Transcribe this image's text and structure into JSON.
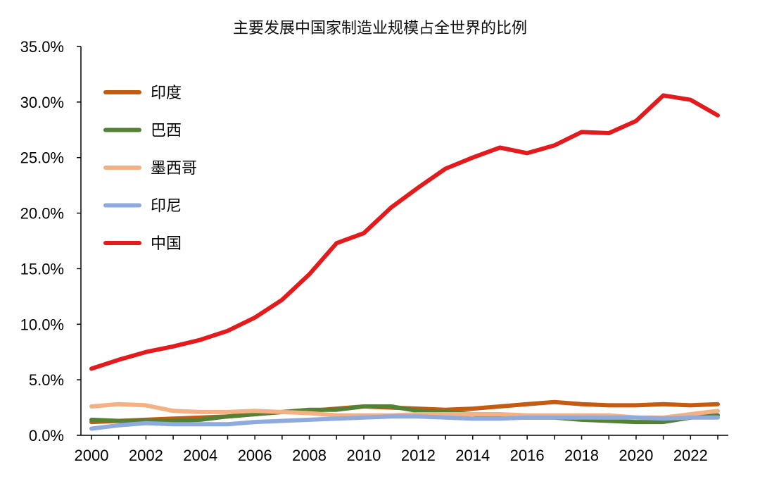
{
  "chart_data": {
    "type": "line",
    "title": "主要发展中国家制造业规模占全世界的比例",
    "xlabel": "",
    "ylabel": "",
    "x": [
      2000,
      2001,
      2002,
      2003,
      2004,
      2005,
      2006,
      2007,
      2008,
      2009,
      2010,
      2011,
      2012,
      2013,
      2014,
      2015,
      2016,
      2017,
      2018,
      2019,
      2020,
      2021,
      2022,
      2023
    ],
    "xticks": [
      "2000",
      "2002",
      "2004",
      "2006",
      "2008",
      "2010",
      "2012",
      "2014",
      "2016",
      "2018",
      "2020",
      "2022"
    ],
    "xlim": [
      2000,
      2023
    ],
    "ylim": [
      0,
      35
    ],
    "yticks": [
      "0.0%",
      "5.0%",
      "10.0%",
      "15.0%",
      "20.0%",
      "25.0%",
      "30.0%",
      "35.0%"
    ],
    "legend_position": "top-left",
    "grid": false,
    "series": [
      {
        "name": "印度",
        "color": "#C55A11",
        "values": [
          1.2,
          1.3,
          1.4,
          1.5,
          1.6,
          1.7,
          1.9,
          2.1,
          2.2,
          2.4,
          2.6,
          2.5,
          2.4,
          2.3,
          2.4,
          2.6,
          2.8,
          3.0,
          2.8,
          2.7,
          2.7,
          2.8,
          2.7,
          2.8
        ]
      },
      {
        "name": "巴西",
        "color": "#548235",
        "values": [
          1.4,
          1.3,
          1.3,
          1.3,
          1.4,
          1.7,
          1.9,
          2.1,
          2.3,
          2.3,
          2.6,
          2.6,
          2.2,
          2.1,
          1.9,
          1.6,
          1.6,
          1.6,
          1.4,
          1.3,
          1.2,
          1.2,
          1.6,
          1.8
        ]
      },
      {
        "name": "墨西哥",
        "color": "#F4B183",
        "values": [
          2.6,
          2.8,
          2.7,
          2.2,
          2.1,
          2.1,
          2.2,
          2.1,
          2.0,
          1.8,
          1.8,
          1.8,
          1.9,
          1.9,
          1.9,
          1.9,
          1.8,
          1.8,
          1.8,
          1.8,
          1.6,
          1.6,
          1.9,
          2.2
        ]
      },
      {
        "name": "印尼",
        "color": "#8FAADC",
        "values": [
          0.6,
          0.9,
          1.1,
          1.0,
          1.0,
          1.0,
          1.2,
          1.3,
          1.4,
          1.5,
          1.6,
          1.7,
          1.7,
          1.6,
          1.5,
          1.5,
          1.6,
          1.6,
          1.6,
          1.6,
          1.6,
          1.5,
          1.6,
          1.6
        ]
      },
      {
        "name": "中国",
        "color": "#E41A1C",
        "values": [
          6.0,
          6.8,
          7.5,
          8.0,
          8.6,
          9.4,
          10.6,
          12.2,
          14.5,
          17.3,
          18.2,
          20.5,
          22.3,
          24.0,
          25.0,
          25.9,
          25.4,
          26.1,
          27.3,
          27.2,
          28.3,
          30.6,
          30.2,
          28.8
        ]
      }
    ]
  }
}
